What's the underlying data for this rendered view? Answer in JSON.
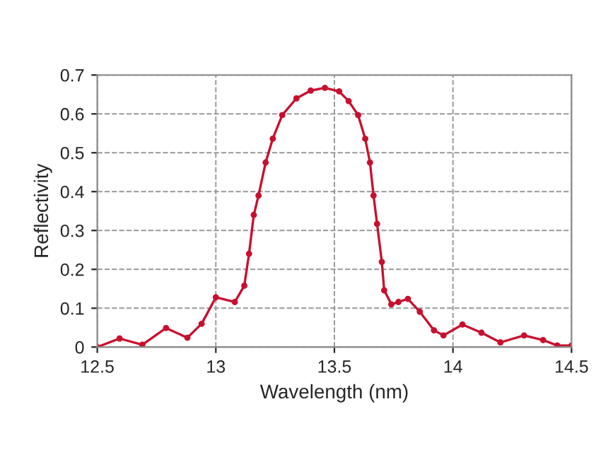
{
  "chart_data": {
    "type": "line",
    "xlabel": "Wavelength (nm)",
    "ylabel": "Reflectivity",
    "xlim": [
      12.5,
      14.5
    ],
    "xticks": [
      12.5,
      13,
      13.5,
      14,
      14.5
    ],
    "ylim": [
      0,
      0.7
    ],
    "yticks": [
      0,
      0.1,
      0.2,
      0.3,
      0.4,
      0.5,
      0.6,
      0.7
    ],
    "grid": true,
    "marker": "circle",
    "line_style": "solid",
    "series": [
      {
        "color": "#c8102e",
        "x": [
          12.5,
          12.594,
          12.69,
          12.79,
          12.88,
          12.94,
          13.0,
          13.08,
          13.12,
          13.14,
          13.16,
          13.18,
          13.21,
          13.24,
          13.28,
          13.34,
          13.4,
          13.46,
          13.52,
          13.56,
          13.6,
          13.63,
          13.65,
          13.665,
          13.68,
          13.7,
          13.71,
          13.74,
          13.77,
          13.81,
          13.86,
          13.92,
          13.96,
          14.04,
          14.12,
          14.2,
          14.3,
          14.38,
          14.44,
          14.5
        ],
        "values": [
          0.0,
          0.022,
          0.006,
          0.049,
          0.024,
          0.06,
          0.128,
          0.116,
          0.158,
          0.24,
          0.34,
          0.39,
          0.475,
          0.536,
          0.597,
          0.64,
          0.66,
          0.667,
          0.658,
          0.633,
          0.597,
          0.536,
          0.475,
          0.39,
          0.317,
          0.219,
          0.146,
          0.11,
          0.116,
          0.124,
          0.091,
          0.043,
          0.03,
          0.058,
          0.037,
          0.012,
          0.03,
          0.018,
          0.004,
          0.004
        ]
      }
    ]
  }
}
